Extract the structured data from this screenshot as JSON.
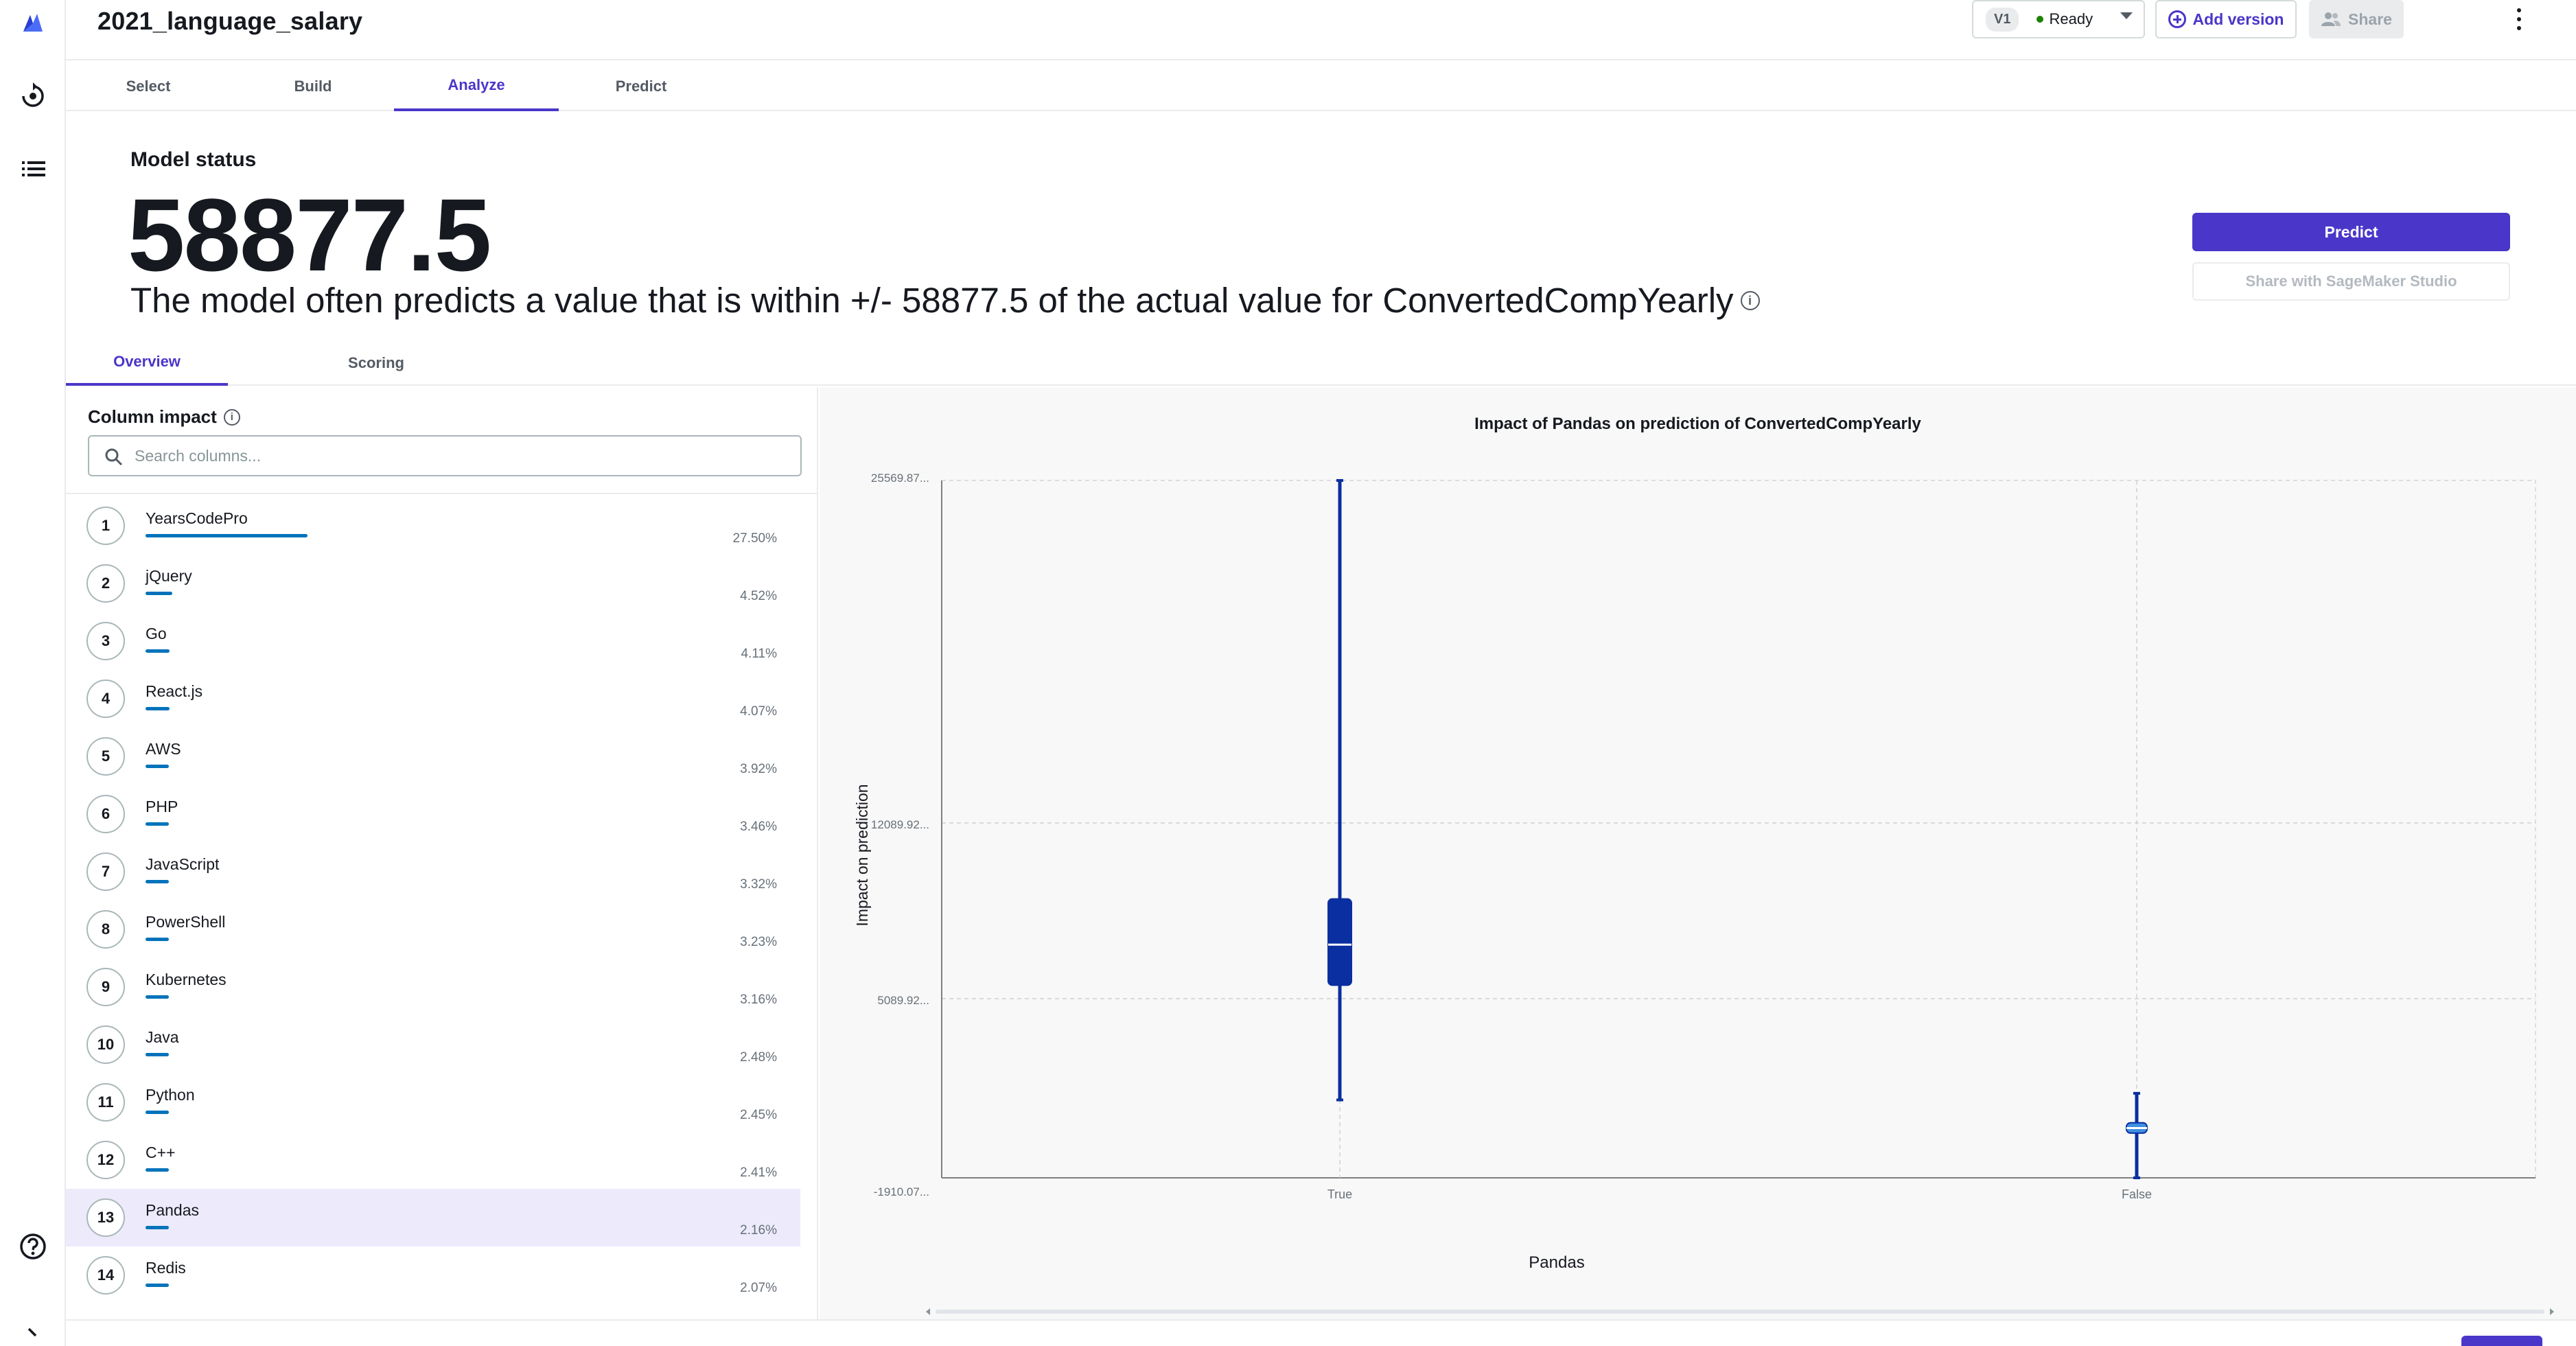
{
  "header": {
    "title": "2021_language_salary",
    "version": "V1",
    "status": "Ready",
    "add_version": "Add version",
    "share": "Share"
  },
  "tabs": [
    {
      "label": "Select"
    },
    {
      "label": "Build"
    },
    {
      "label": "Analyze"
    },
    {
      "label": "Predict"
    }
  ],
  "model_status": {
    "label": "Model status",
    "value": "58877.5",
    "description": "The model often predicts a value that is within +/- 58877.5 of the actual value for ConvertedCompYearly"
  },
  "actions": {
    "predict": "Predict",
    "share_studio": "Share with SageMaker Studio"
  },
  "subtabs": [
    {
      "label": "Overview"
    },
    {
      "label": "Scoring"
    }
  ],
  "column_impact": {
    "label": "Column impact",
    "search_placeholder": "Search columns...",
    "rows": [
      {
        "rank": "1",
        "name": "YearsCodePro",
        "pct": "27.50%",
        "impact": 27.5
      },
      {
        "rank": "2",
        "name": "jQuery",
        "pct": "4.52%",
        "impact": 4.52
      },
      {
        "rank": "3",
        "name": "Go",
        "pct": "4.11%",
        "impact": 4.11
      },
      {
        "rank": "4",
        "name": "React.js",
        "pct": "4.07%",
        "impact": 4.07
      },
      {
        "rank": "5",
        "name": "AWS",
        "pct": "3.92%",
        "impact": 3.92
      },
      {
        "rank": "6",
        "name": "PHP",
        "pct": "3.46%",
        "impact": 3.46
      },
      {
        "rank": "7",
        "name": "JavaScript",
        "pct": "3.32%",
        "impact": 3.32
      },
      {
        "rank": "8",
        "name": "PowerShell",
        "pct": "3.23%",
        "impact": 3.23
      },
      {
        "rank": "9",
        "name": "Kubernetes",
        "pct": "3.16%",
        "impact": 3.16
      },
      {
        "rank": "10",
        "name": "Java",
        "pct": "2.48%",
        "impact": 2.48
      },
      {
        "rank": "11",
        "name": "Python",
        "pct": "2.45%",
        "impact": 2.45
      },
      {
        "rank": "12",
        "name": "C++",
        "pct": "2.41%",
        "impact": 2.41
      },
      {
        "rank": "13",
        "name": "Pandas",
        "pct": "2.16%",
        "impact": 2.16
      },
      {
        "rank": "14",
        "name": "Redis",
        "pct": "2.07%",
        "impact": 2.07
      }
    ]
  },
  "chart_data": {
    "type": "box",
    "title": "Impact of Pandas on prediction of ConvertedCompYearly",
    "xlabel": "Pandas",
    "ylabel": "Impact on prediction",
    "categories": [
      "True",
      "False"
    ],
    "y_ticks": [
      {
        "label": "25569.87...",
        "value": 25569.87
      },
      {
        "label": "12089.92...",
        "value": 12089.92
      },
      {
        "label": "5089.92...",
        "value": 5089.92
      },
      {
        "label": "-1910.07...",
        "value": -1910.07
      }
    ],
    "ylim": [
      -1910.07,
      25569.87
    ],
    "boxes": [
      {
        "category": "True",
        "whisker_low": 1160,
        "q1": 5680,
        "median": 7280,
        "q3": 9080,
        "whisker_high": 25570,
        "color": "#0a2fa0"
      },
      {
        "category": "False",
        "whisker_low": -1910,
        "q1": -150,
        "median": 50,
        "q3": 260,
        "whisker_high": 1420,
        "color": "#0a2fa0"
      }
    ],
    "grid": true
  }
}
